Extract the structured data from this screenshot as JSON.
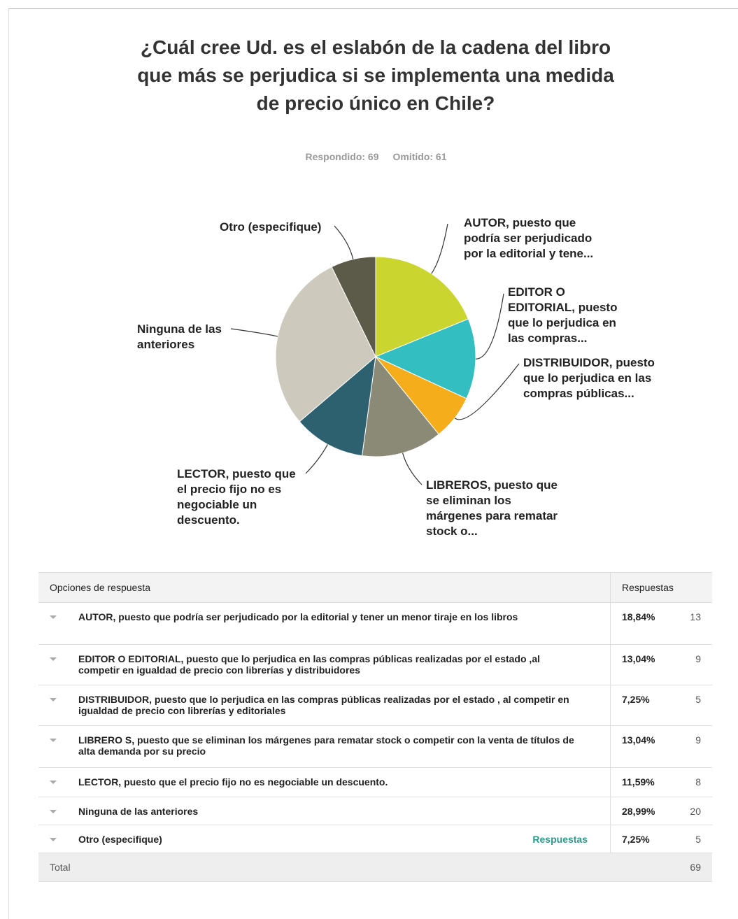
{
  "chart_data": {
    "type": "pie",
    "title": "¿Cuál cree Ud. es el eslabón de la cadena del libro que más se perjudica si se implementa una medida de precio único en Chile?",
    "answered": "Respondido: 69",
    "skipped": "Omitido: 61",
    "categories": [
      "AUTOR, puesto que podría ser perjudicado por la editorial y tene...",
      "EDITOR O EDITORIAL, puesto que lo perjudica en las compras...",
      "DISTRIBUIDOR, puesto que lo perjudica en las compras públicas...",
      "LIBREROS, puesto que se eliminan los márgenes para rematar stock o...",
      "LECTOR, puesto que el precio fijo no es negociable un descuento.",
      "Ninguna de las anteriores",
      "Otro (especifique)"
    ],
    "values": [
      18.84,
      13.04,
      7.25,
      13.04,
      11.59,
      28.99,
      7.25
    ],
    "colors": [
      "#cbd530",
      "#33bfc2",
      "#f5ad1c",
      "#8a8a77",
      "#2e6170",
      "#cdcabd",
      "#5c5a48"
    ]
  },
  "table": {
    "header": [
      "Opciones de respuesta",
      "Respuestas"
    ],
    "rows": [
      [
        "AUTOR, puesto que podría ser perjudicado por la editorial y tener un menor tiraje en los libros",
        "18,84%",
        13
      ],
      [
        "EDITOR O EDITORIAL, puesto que  lo perjudica en las compras públicas realizadas por el estado ,al competir en igualdad de precio con librerías y distribuidores",
        "13,04%",
        9
      ],
      [
        "DISTRIBUIDOR, puesto que  lo perjudica en las compras públicas realizadas por el estado , al competir en igualdad de precio con librerías y editoriales",
        "7,25%",
        5
      ],
      [
        "LIBRERO S, puesto que se eliminan los márgenes para rematar stock o competir con la venta de títulos de alta demanda por su precio",
        "13,04%",
        9
      ],
      [
        "LECTOR, puesto que el precio fijo no es negociable un descuento.",
        "11,59%",
        8
      ],
      [
        "Ninguna de las anteriores",
        "28,99%",
        20
      ],
      [
        "Otro (especifique)",
        "7,25%",
        5
      ]
    ],
    "link": "Respuestas",
    "total": [
      "Total",
      69
    ]
  }
}
